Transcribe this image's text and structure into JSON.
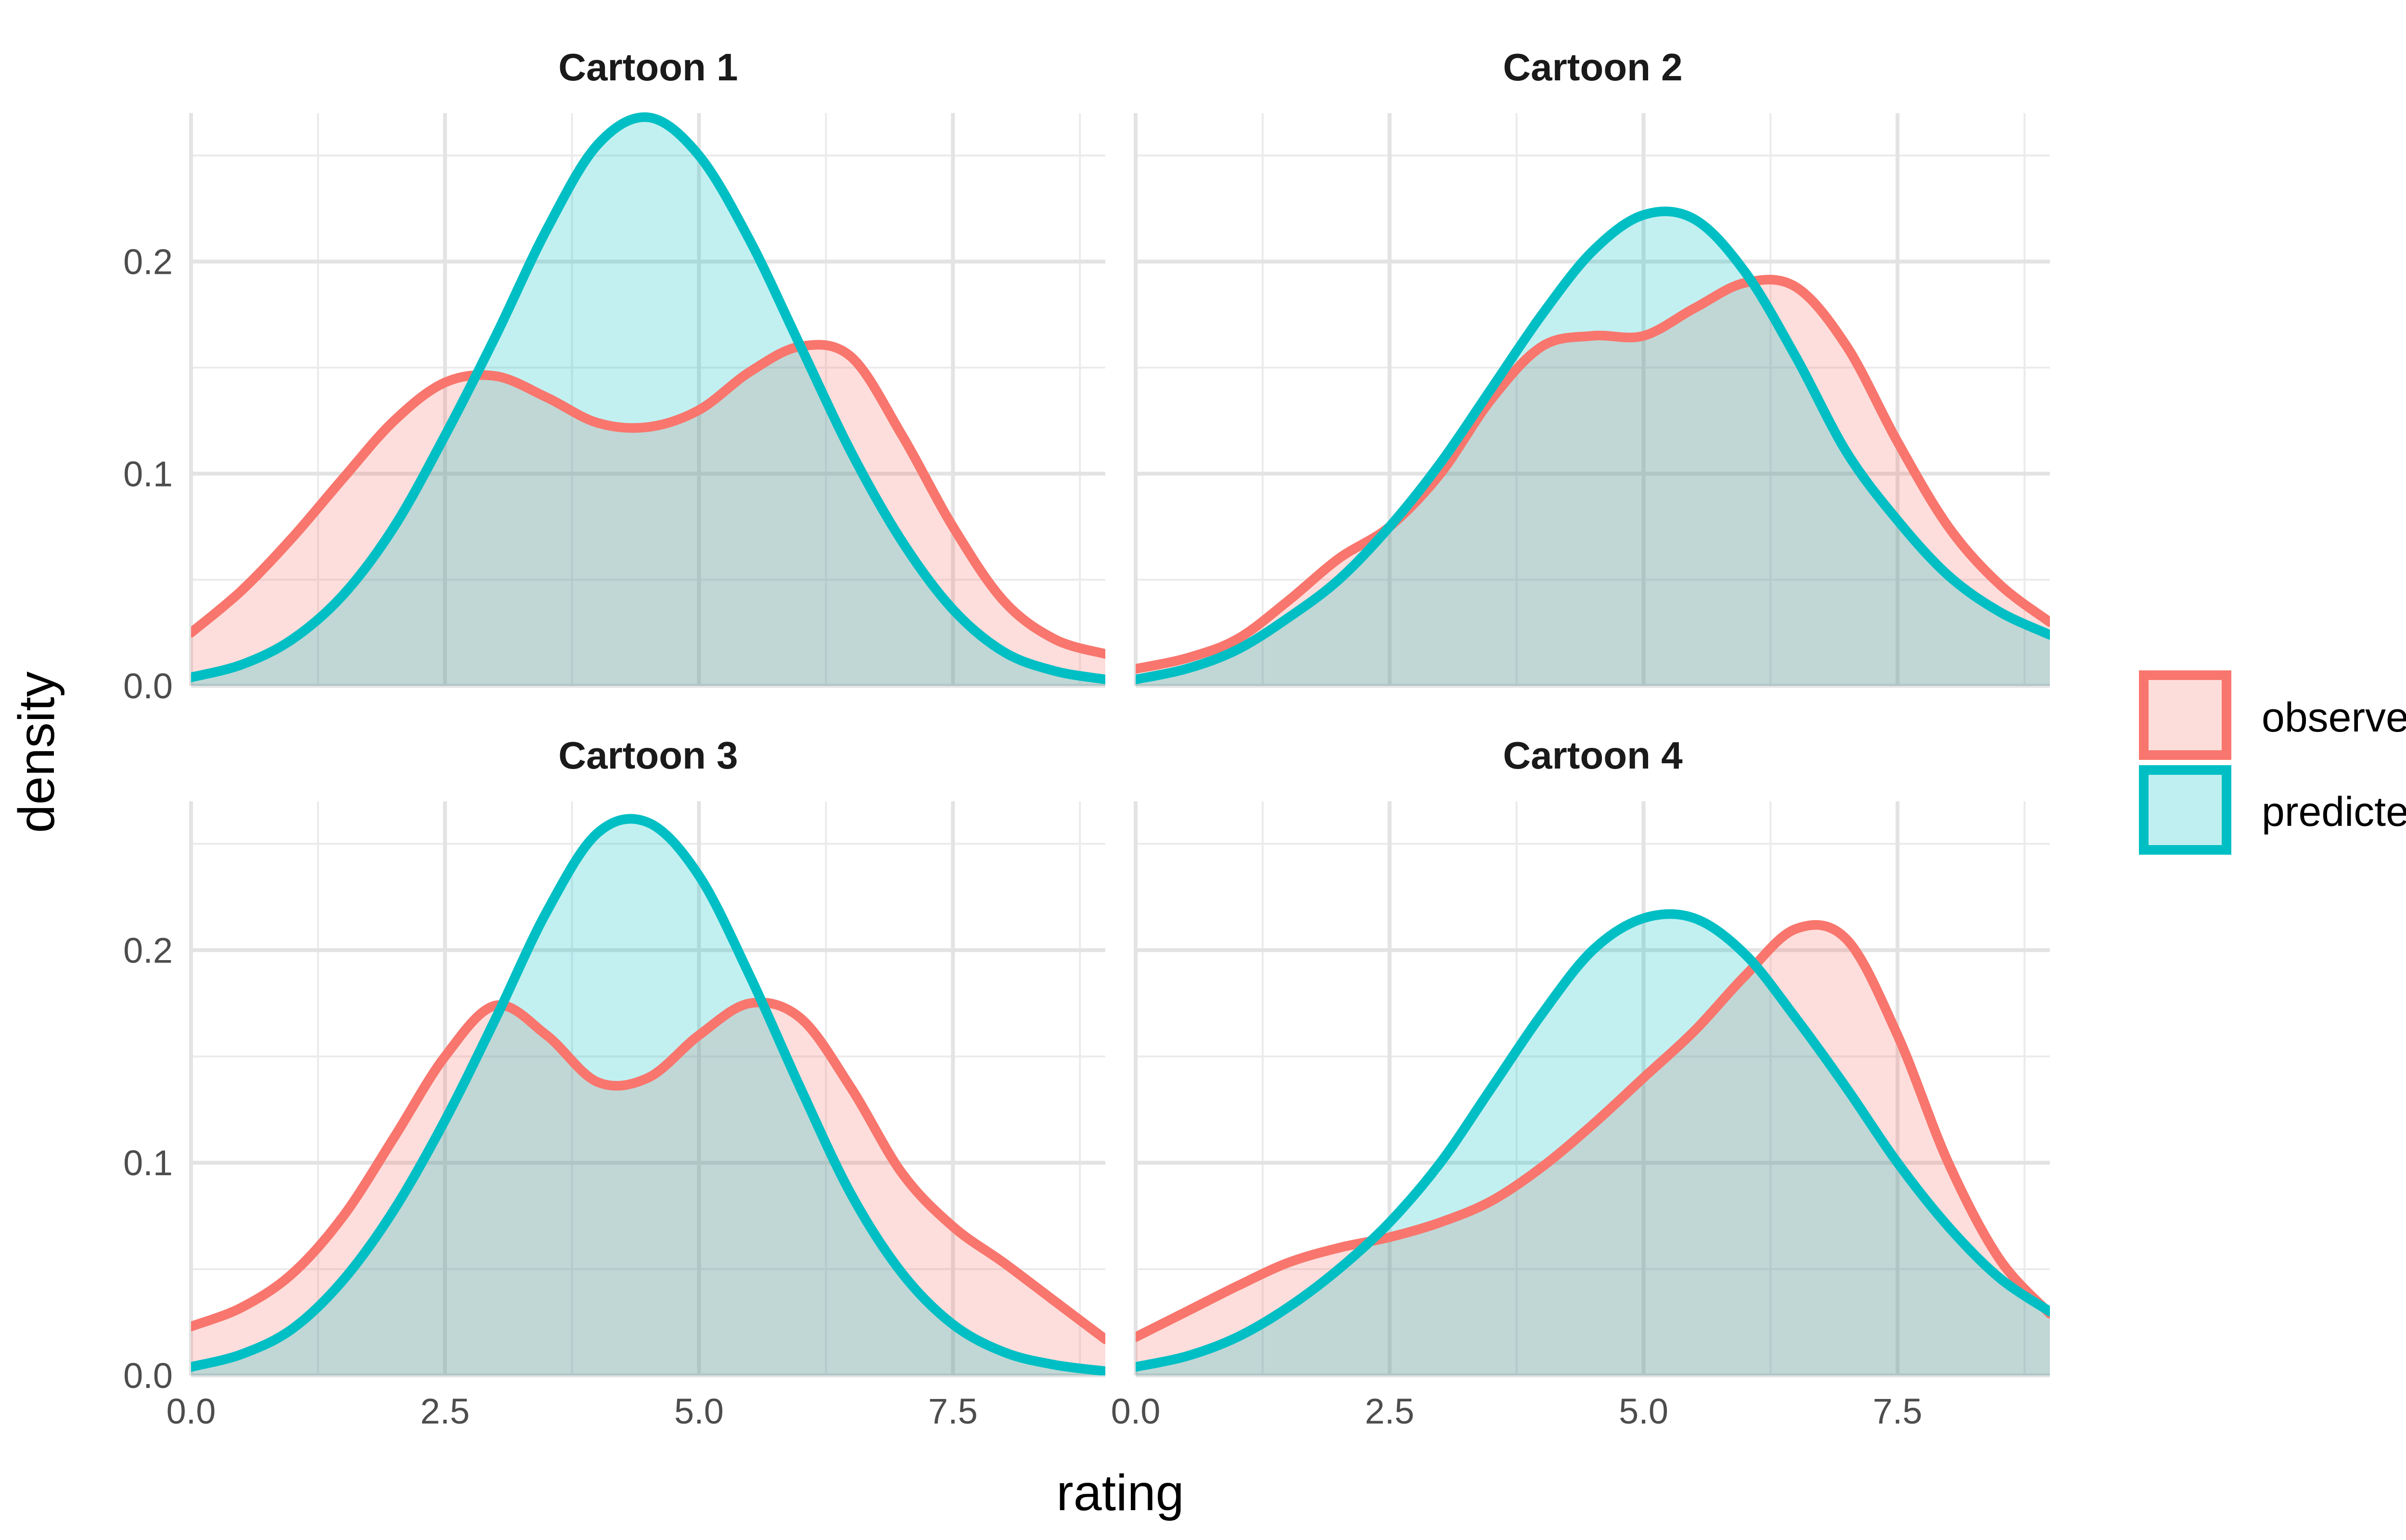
{
  "chart_data": {
    "type": "area",
    "xlabel": "rating",
    "ylabel": "density",
    "xlim": [
      0,
      9
    ],
    "ylim": [
      0,
      0.27
    ],
    "x_ticks": [
      0.0,
      2.5,
      5.0,
      7.5
    ],
    "x_tick_labels": [
      "0.0",
      "2.5",
      "5.0",
      "7.5"
    ],
    "y_ticks": [
      0.0,
      0.1,
      0.2
    ],
    "y_tick_labels": [
      "0.0",
      "0.1",
      "0.2"
    ],
    "grid": true,
    "legend_position": "right",
    "legend": [
      {
        "label": "observed",
        "color": "#F8766D"
      },
      {
        "label": "predicted",
        "color": "#00BFC4"
      }
    ],
    "panels": [
      {
        "title": "Cartoon 1",
        "series": [
          {
            "name": "observed",
            "x": [
              0,
              0.5,
              1,
              1.5,
              2,
              2.5,
              3,
              3.5,
              4,
              4.5,
              5,
              5.5,
              6,
              6.5,
              7,
              7.5,
              8,
              8.5,
              9
            ],
            "values": [
              0.025,
              0.045,
              0.07,
              0.098,
              0.125,
              0.143,
              0.146,
              0.136,
              0.124,
              0.122,
              0.13,
              0.148,
              0.16,
              0.155,
              0.118,
              0.075,
              0.04,
              0.022,
              0.015
            ]
          },
          {
            "name": "predicted",
            "x": [
              0,
              0.5,
              1,
              1.5,
              2,
              2.5,
              3,
              3.5,
              4,
              4.5,
              5,
              5.5,
              6,
              6.5,
              7,
              7.5,
              8,
              8.5,
              9
            ],
            "values": [
              0.004,
              0.01,
              0.022,
              0.043,
              0.075,
              0.118,
              0.165,
              0.215,
              0.255,
              0.268,
              0.25,
              0.21,
              0.16,
              0.11,
              0.068,
              0.036,
              0.016,
              0.007,
              0.003
            ]
          }
        ]
      },
      {
        "title": "Cartoon 2",
        "series": [
          {
            "name": "observed",
            "x": [
              0,
              0.5,
              1,
              1.5,
              2,
              2.5,
              3,
              3.5,
              4,
              4.5,
              5,
              5.5,
              6,
              6.5,
              7,
              7.5,
              8,
              8.5,
              9
            ],
            "values": [
              0.008,
              0.013,
              0.022,
              0.04,
              0.06,
              0.075,
              0.1,
              0.135,
              0.16,
              0.165,
              0.165,
              0.178,
              0.19,
              0.188,
              0.16,
              0.115,
              0.075,
              0.048,
              0.03
            ]
          },
          {
            "name": "predicted",
            "x": [
              0,
              0.5,
              1,
              1.5,
              2,
              2.5,
              3,
              3.5,
              4,
              4.5,
              5,
              5.5,
              6,
              6.5,
              7,
              7.5,
              8,
              8.5,
              9
            ],
            "values": [
              0.003,
              0.008,
              0.017,
              0.032,
              0.05,
              0.075,
              0.105,
              0.14,
              0.175,
              0.205,
              0.222,
              0.22,
              0.195,
              0.155,
              0.11,
              0.078,
              0.052,
              0.035,
              0.024
            ]
          }
        ]
      },
      {
        "title": "Cartoon 3",
        "series": [
          {
            "name": "observed",
            "x": [
              0,
              0.5,
              1,
              1.5,
              2,
              2.5,
              3,
              3.5,
              4,
              4.5,
              5,
              5.5,
              6,
              6.5,
              7,
              7.5,
              8,
              8.5,
              9
            ],
            "values": [
              0.023,
              0.032,
              0.048,
              0.075,
              0.112,
              0.15,
              0.174,
              0.16,
              0.138,
              0.14,
              0.16,
              0.175,
              0.168,
              0.135,
              0.095,
              0.07,
              0.053,
              0.035,
              0.017
            ]
          },
          {
            "name": "predicted",
            "x": [
              0,
              0.5,
              1,
              1.5,
              2,
              2.5,
              3,
              3.5,
              4,
              4.5,
              5,
              5.5,
              6,
              6.5,
              7,
              7.5,
              8,
              8.5,
              9
            ],
            "values": [
              0.004,
              0.01,
              0.022,
              0.045,
              0.078,
              0.12,
              0.168,
              0.218,
              0.255,
              0.26,
              0.235,
              0.188,
              0.135,
              0.085,
              0.048,
              0.024,
              0.011,
              0.005,
              0.002
            ]
          }
        ]
      },
      {
        "title": "Cartoon 4",
        "series": [
          {
            "name": "observed",
            "x": [
              0,
              0.5,
              1,
              1.5,
              2,
              2.5,
              3,
              3.5,
              4,
              4.5,
              5,
              5.5,
              6,
              6.5,
              7,
              7.5,
              8,
              8.5,
              9
            ],
            "values": [
              0.018,
              0.03,
              0.042,
              0.053,
              0.06,
              0.065,
              0.072,
              0.082,
              0.098,
              0.118,
              0.14,
              0.162,
              0.188,
              0.21,
              0.205,
              0.16,
              0.1,
              0.055,
              0.029
            ]
          },
          {
            "name": "predicted",
            "x": [
              0,
              0.5,
              1,
              1.5,
              2,
              2.5,
              3,
              3.5,
              4,
              4.5,
              5,
              5.5,
              6,
              6.5,
              7,
              7.5,
              8,
              8.5,
              9
            ],
            "values": [
              0.004,
              0.009,
              0.018,
              0.032,
              0.05,
              0.072,
              0.1,
              0.135,
              0.17,
              0.2,
              0.215,
              0.215,
              0.198,
              0.168,
              0.135,
              0.1,
              0.07,
              0.046,
              0.03
            ]
          }
        ]
      }
    ]
  }
}
